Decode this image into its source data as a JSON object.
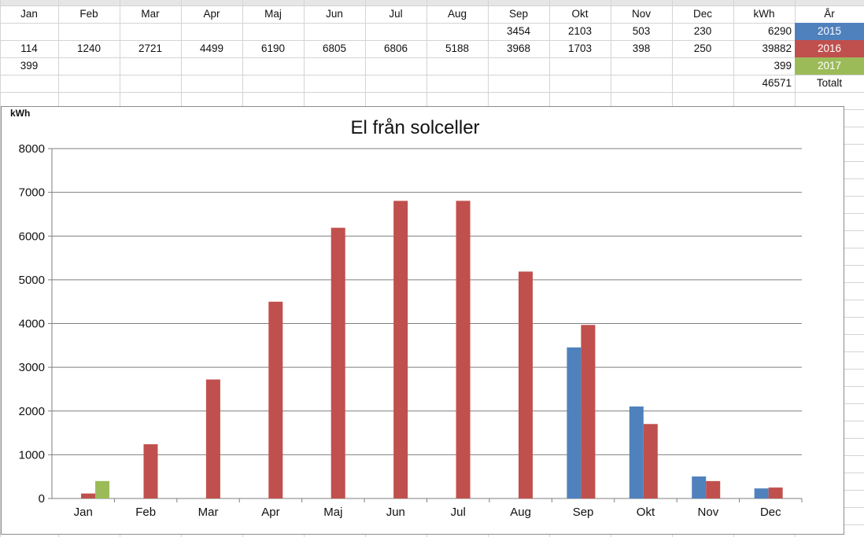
{
  "sheet": {
    "header_row": [
      "Jan",
      "Feb",
      "Mar",
      "Apr",
      "Maj",
      "Jun",
      "Jul",
      "Aug",
      "Sep",
      "Okt",
      "Nov",
      "Dec",
      "kWh",
      "År"
    ],
    "rows": [
      {
        "cells": [
          "",
          "",
          "",
          "",
          "",
          "",
          "",
          "",
          "3454",
          "2103",
          "503",
          "230",
          "6290"
        ],
        "year": "2015",
        "year_color": "#4f81bd"
      },
      {
        "cells": [
          "114",
          "1240",
          "2721",
          "4499",
          "6190",
          "6805",
          "6806",
          "5188",
          "3968",
          "1703",
          "398",
          "250",
          "39882"
        ],
        "year": "2016",
        "year_color": "#c0504d"
      },
      {
        "cells": [
          "399",
          "",
          "",
          "",
          "",
          "",
          "",
          "",
          "",
          "",
          "",
          "",
          "399"
        ],
        "year": "2017",
        "year_color": "#9bbb59"
      }
    ],
    "total_value": "46571",
    "total_label": "Totalt"
  },
  "chart_data": {
    "type": "bar",
    "title": "El från solceller",
    "ylabel": "kWh",
    "xlabel": "",
    "categories": [
      "Jan",
      "Feb",
      "Mar",
      "Apr",
      "Maj",
      "Jun",
      "Jul",
      "Aug",
      "Sep",
      "Okt",
      "Nov",
      "Dec"
    ],
    "series": [
      {
        "values": [
          null,
          null,
          null,
          null,
          null,
          null,
          null,
          null,
          3454,
          2103,
          503,
          230
        ],
        "color": "#4f81bd"
      },
      {
        "values": [
          114,
          1240,
          2721,
          4499,
          6190,
          6805,
          6806,
          5188,
          3968,
          1703,
          398,
          250
        ],
        "color": "#c0504d"
      },
      {
        "values": [
          399,
          null,
          null,
          null,
          null,
          null,
          null,
          null,
          null,
          null,
          null,
          null
        ],
        "color": "#9bbb59"
      }
    ],
    "ylim": [
      0,
      8000
    ],
    "yticks": [
      0,
      1000,
      2000,
      3000,
      4000,
      5000,
      6000,
      7000,
      8000
    ],
    "grid": true,
    "legend": "none"
  }
}
